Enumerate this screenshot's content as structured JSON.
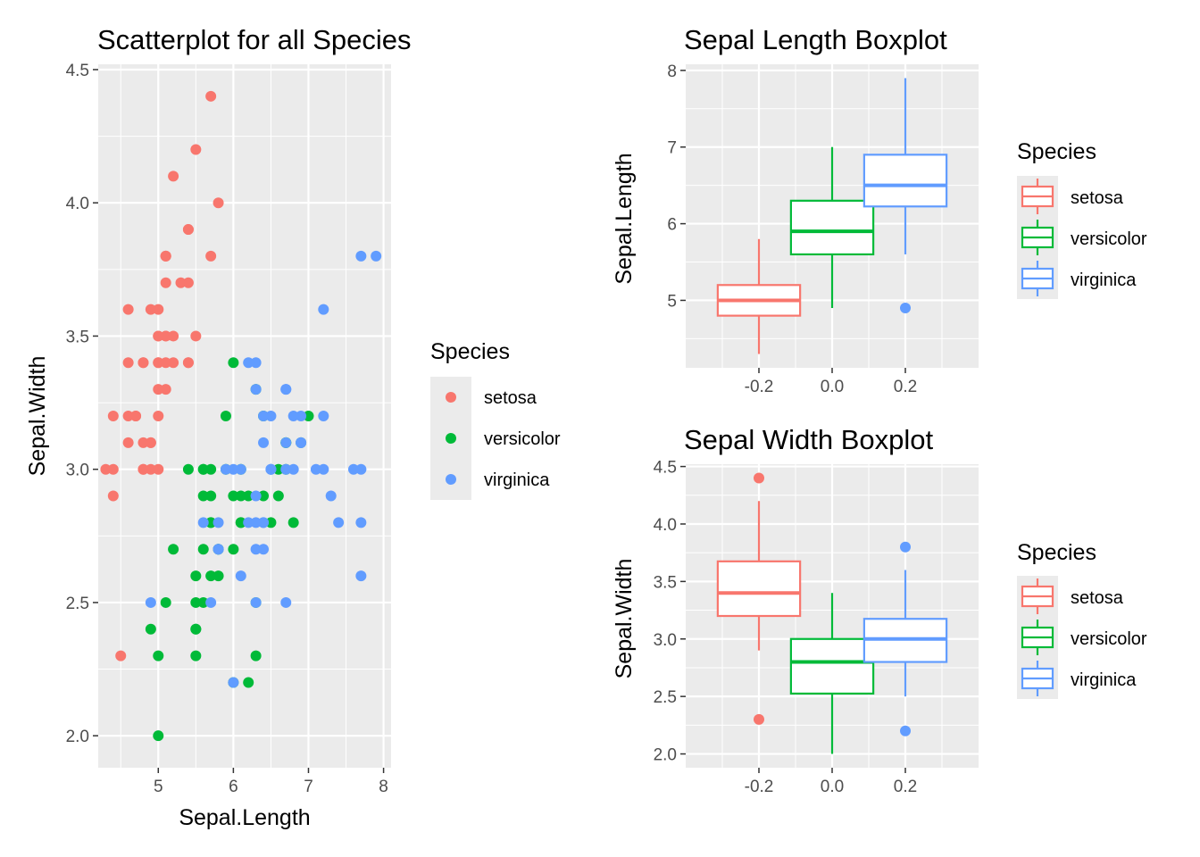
{
  "chart_data": [
    {
      "type": "scatter",
      "title": "Scatterplot for all Species",
      "xlabel": "Sepal.Length",
      "ylabel": "Sepal.Width",
      "xlim": [
        4.2,
        8.1
      ],
      "ylim": [
        1.88,
        4.52
      ],
      "xticks": [
        "5",
        "6",
        "7",
        "8"
      ],
      "yticks": [
        "2.0",
        "2.5",
        "3.0",
        "3.5",
        "4.0",
        "4.5"
      ],
      "grid": true,
      "legend": {
        "title": "Species",
        "position": "right"
      },
      "series": [
        {
          "name": "setosa",
          "color": "#F8766D",
          "points": [
            [
              5.1,
              3.5
            ],
            [
              4.9,
              3.0
            ],
            [
              4.7,
              3.2
            ],
            [
              4.6,
              3.1
            ],
            [
              5.0,
              3.6
            ],
            [
              5.4,
              3.9
            ],
            [
              4.6,
              3.4
            ],
            [
              5.0,
              3.4
            ],
            [
              4.4,
              2.9
            ],
            [
              4.9,
              3.1
            ],
            [
              5.4,
              3.7
            ],
            [
              4.8,
              3.4
            ],
            [
              4.8,
              3.0
            ],
            [
              4.3,
              3.0
            ],
            [
              5.8,
              4.0
            ],
            [
              5.7,
              4.4
            ],
            [
              5.4,
              3.9
            ],
            [
              5.1,
              3.5
            ],
            [
              5.7,
              3.8
            ],
            [
              5.1,
              3.8
            ],
            [
              5.4,
              3.4
            ],
            [
              5.1,
              3.7
            ],
            [
              4.6,
              3.6
            ],
            [
              5.1,
              3.3
            ],
            [
              4.8,
              3.4
            ],
            [
              5.0,
              3.0
            ],
            [
              5.0,
              3.4
            ],
            [
              5.2,
              3.5
            ],
            [
              5.2,
              3.4
            ],
            [
              4.7,
              3.2
            ],
            [
              4.8,
              3.1
            ],
            [
              5.4,
              3.4
            ],
            [
              5.2,
              4.1
            ],
            [
              5.5,
              4.2
            ],
            [
              4.9,
              3.1
            ],
            [
              5.0,
              3.2
            ],
            [
              5.5,
              3.5
            ],
            [
              4.9,
              3.6
            ],
            [
              4.4,
              3.0
            ],
            [
              5.1,
              3.4
            ],
            [
              5.0,
              3.5
            ],
            [
              4.5,
              2.3
            ],
            [
              4.4,
              3.2
            ],
            [
              5.0,
              3.5
            ],
            [
              5.1,
              3.8
            ],
            [
              4.8,
              3.0
            ],
            [
              5.1,
              3.8
            ],
            [
              4.6,
              3.2
            ],
            [
              5.3,
              3.7
            ],
            [
              5.0,
              3.3
            ]
          ]
        },
        {
          "name": "versicolor",
          "color": "#00BA38",
          "points": [
            [
              7.0,
              3.2
            ],
            [
              6.4,
              3.2
            ],
            [
              6.9,
              3.1
            ],
            [
              5.5,
              2.3
            ],
            [
              6.5,
              2.8
            ],
            [
              5.7,
              2.8
            ],
            [
              6.3,
              3.3
            ],
            [
              4.9,
              2.4
            ],
            [
              6.6,
              2.9
            ],
            [
              5.2,
              2.7
            ],
            [
              5.0,
              2.0
            ],
            [
              5.9,
              3.0
            ],
            [
              6.0,
              2.2
            ],
            [
              6.1,
              2.9
            ],
            [
              5.6,
              2.9
            ],
            [
              6.7,
              3.1
            ],
            [
              5.6,
              3.0
            ],
            [
              5.8,
              2.7
            ],
            [
              6.2,
              2.2
            ],
            [
              5.6,
              2.5
            ],
            [
              5.9,
              3.2
            ],
            [
              6.1,
              2.8
            ],
            [
              6.3,
              2.5
            ],
            [
              6.1,
              2.8
            ],
            [
              6.4,
              2.9
            ],
            [
              6.6,
              3.0
            ],
            [
              6.8,
              2.8
            ],
            [
              6.7,
              3.0
            ],
            [
              6.0,
              2.9
            ],
            [
              5.7,
              2.6
            ],
            [
              5.5,
              2.4
            ],
            [
              5.5,
              2.4
            ],
            [
              5.8,
              2.7
            ],
            [
              6.0,
              2.7
            ],
            [
              5.4,
              3.0
            ],
            [
              6.0,
              3.4
            ],
            [
              6.7,
              3.1
            ],
            [
              6.3,
              2.3
            ],
            [
              5.6,
              3.0
            ],
            [
              5.5,
              2.5
            ],
            [
              5.5,
              2.6
            ],
            [
              6.1,
              3.0
            ],
            [
              5.8,
              2.6
            ],
            [
              5.0,
              2.3
            ],
            [
              5.6,
              2.7
            ],
            [
              5.7,
              3.0
            ],
            [
              5.7,
              2.9
            ],
            [
              6.2,
              2.9
            ],
            [
              5.1,
              2.5
            ],
            [
              5.7,
              2.8
            ]
          ]
        },
        {
          "name": "virginica",
          "color": "#619CFF",
          "points": [
            [
              6.3,
              3.3
            ],
            [
              5.8,
              2.7
            ],
            [
              7.1,
              3.0
            ],
            [
              6.3,
              2.9
            ],
            [
              6.5,
              3.0
            ],
            [
              7.6,
              3.0
            ],
            [
              4.9,
              2.5
            ],
            [
              7.3,
              2.9
            ],
            [
              6.7,
              2.5
            ],
            [
              7.2,
              3.6
            ],
            [
              6.5,
              3.2
            ],
            [
              6.4,
              2.7
            ],
            [
              6.8,
              3.0
            ],
            [
              5.7,
              2.5
            ],
            [
              5.8,
              2.8
            ],
            [
              6.4,
              3.2
            ],
            [
              6.5,
              3.0
            ],
            [
              7.7,
              3.8
            ],
            [
              7.7,
              2.6
            ],
            [
              6.0,
              2.2
            ],
            [
              6.9,
              3.2
            ],
            [
              5.6,
              2.8
            ],
            [
              7.7,
              2.8
            ],
            [
              6.3,
              2.7
            ],
            [
              6.7,
              3.3
            ],
            [
              7.2,
              3.2
            ],
            [
              6.2,
              2.8
            ],
            [
              6.1,
              3.0
            ],
            [
              6.4,
              2.8
            ],
            [
              7.2,
              3.0
            ],
            [
              7.4,
              2.8
            ],
            [
              7.9,
              3.8
            ],
            [
              6.4,
              2.8
            ],
            [
              6.3,
              2.8
            ],
            [
              6.1,
              2.6
            ],
            [
              7.7,
              3.0
            ],
            [
              6.3,
              3.4
            ],
            [
              6.4,
              3.1
            ],
            [
              6.0,
              3.0
            ],
            [
              6.9,
              3.1
            ],
            [
              6.7,
              3.1
            ],
            [
              6.9,
              3.1
            ],
            [
              5.8,
              2.7
            ],
            [
              6.8,
              3.2
            ],
            [
              6.7,
              3.3
            ],
            [
              6.7,
              3.0
            ],
            [
              6.3,
              2.5
            ],
            [
              6.5,
              3.0
            ],
            [
              6.2,
              3.4
            ],
            [
              5.9,
              3.0
            ]
          ]
        }
      ]
    },
    {
      "type": "box",
      "title": "Sepal Length Boxplot",
      "xlabel": "",
      "ylabel": "Sepal.Length",
      "xlim": [
        -0.4,
        0.4
      ],
      "ylim": [
        4.12,
        8.08
      ],
      "xticks": [
        "-0.2",
        "0.0",
        "0.2"
      ],
      "yticks": [
        "5",
        "6",
        "7",
        "8"
      ],
      "grid": true,
      "legend": {
        "title": "Species",
        "position": "right"
      },
      "boxes": [
        {
          "name": "setosa",
          "color": "#F8766D",
          "x": -0.2,
          "lower_whisker": 4.3,
          "q1": 4.8,
          "median": 5.0,
          "q3": 5.2,
          "upper_whisker": 5.8,
          "outliers": []
        },
        {
          "name": "versicolor",
          "color": "#00BA38",
          "x": 0.0,
          "lower_whisker": 4.9,
          "q1": 5.6,
          "median": 5.9,
          "q3": 6.3,
          "upper_whisker": 7.0,
          "outliers": []
        },
        {
          "name": "virginica",
          "color": "#619CFF",
          "x": 0.2,
          "lower_whisker": 5.6,
          "q1": 6.225,
          "median": 6.5,
          "q3": 6.9,
          "upper_whisker": 7.9,
          "outliers": [
            4.9
          ]
        }
      ]
    },
    {
      "type": "box",
      "title": "Sepal Width Boxplot",
      "xlabel": "",
      "ylabel": "Sepal.Width",
      "xlim": [
        -0.4,
        0.4
      ],
      "ylim": [
        1.88,
        4.52
      ],
      "xticks": [
        "-0.2",
        "0.0",
        "0.2"
      ],
      "yticks": [
        "2.0",
        "2.5",
        "3.0",
        "3.5",
        "4.0",
        "4.5"
      ],
      "grid": true,
      "legend": {
        "title": "Species",
        "position": "right"
      },
      "boxes": [
        {
          "name": "setosa",
          "color": "#F8766D",
          "x": -0.2,
          "lower_whisker": 2.9,
          "q1": 3.2,
          "median": 3.4,
          "q3": 3.675,
          "upper_whisker": 4.2,
          "outliers": [
            4.4,
            2.3
          ]
        },
        {
          "name": "versicolor",
          "color": "#00BA38",
          "x": 0.0,
          "lower_whisker": 2.0,
          "q1": 2.525,
          "median": 2.8,
          "q3": 3.0,
          "upper_whisker": 3.4,
          "outliers": []
        },
        {
          "name": "virginica",
          "color": "#619CFF",
          "x": 0.2,
          "lower_whisker": 2.5,
          "q1": 2.8,
          "median": 3.0,
          "q3": 3.175,
          "upper_whisker": 3.6,
          "outliers": [
            3.8,
            2.2
          ]
        }
      ]
    }
  ]
}
